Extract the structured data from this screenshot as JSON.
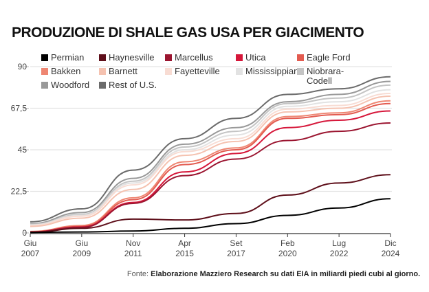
{
  "title": "PRODUZIONE DI SHALE GAS USA PER GIACIMENTO",
  "source": {
    "prefix": "Fonte:",
    "text": "Elaborazione Mazziero Research su dati EIA in miliardi piedi cubi al giorno."
  },
  "chart_data": {
    "type": "line",
    "title": "PRODUZIONE DI SHALE GAS USA PER GIACIMENTO",
    "xlabel": "",
    "ylabel": "",
    "stacked_cumulative": true,
    "ylim": [
      0,
      90
    ],
    "yticks": [
      "0",
      "22,5",
      "45",
      "67,5",
      "90"
    ],
    "ytick_values": [
      0,
      22.5,
      45,
      67.5,
      90
    ],
    "grid": true,
    "legend_position": "top-left",
    "categories": [
      {
        "month": "Giu",
        "year": "2007"
      },
      {
        "month": "Giu",
        "year": "2009"
      },
      {
        "month": "Nov",
        "year": "2011"
      },
      {
        "month": "Apr",
        "year": "2015"
      },
      {
        "month": "Set",
        "year": "2017"
      },
      {
        "month": "Feb",
        "year": "2020"
      },
      {
        "month": "Lug",
        "year": "2022"
      },
      {
        "month": "Dic",
        "year": "2024"
      }
    ],
    "x": [
      0,
      1,
      2,
      3,
      4,
      5,
      6,
      7
    ],
    "series": [
      {
        "name": "Permian",
        "color": "#000000",
        "values": [
          0.3,
          0.5,
          1.0,
          2.5,
          5.0,
          9.5,
          13.5,
          18.5
        ]
      },
      {
        "name": "Haynesville",
        "color": "#5e0f1a",
        "values": [
          0.3,
          2.5,
          7.5,
          7.0,
          10.5,
          20.5,
          27.0,
          31.5
        ]
      },
      {
        "name": "Marcellus",
        "color": "#9b1530",
        "values": [
          0.5,
          3.0,
          16.0,
          31.0,
          40.0,
          50.0,
          55.0,
          59.5
        ]
      },
      {
        "name": "Utica",
        "color": "#d6173a",
        "values": [
          0.5,
          3.2,
          16.5,
          33.0,
          43.0,
          57.0,
          61.0,
          66.0
        ]
      },
      {
        "name": "Eagle Ford",
        "color": "#e35b50",
        "values": [
          0.6,
          3.5,
          18.0,
          37.0,
          45.0,
          62.0,
          64.0,
          70.0
        ]
      },
      {
        "name": "Bakken",
        "color": "#ee8672",
        "values": [
          0.8,
          4.0,
          19.0,
          38.5,
          46.0,
          63.0,
          65.0,
          71.5
        ]
      },
      {
        "name": "Barnett",
        "color": "#f5c2b0",
        "values": [
          3.5,
          8.0,
          23.5,
          42.0,
          49.5,
          65.5,
          67.5,
          74.0
        ]
      },
      {
        "name": "Fayetteville",
        "color": "#f8dcd3",
        "values": [
          4.0,
          9.0,
          26.0,
          44.0,
          51.0,
          67.0,
          69.0,
          75.5
        ]
      },
      {
        "name": "Mississippian",
        "color": "#e2e2e2",
        "values": [
          4.3,
          9.5,
          27.0,
          45.0,
          53.0,
          68.5,
          71.0,
          77.5
        ]
      },
      {
        "name": "Niobrara-Codell",
        "color": "#c4c4c4",
        "values": [
          4.6,
          10.0,
          28.0,
          46.5,
          55.0,
          70.0,
          73.0,
          80.0
        ]
      },
      {
        "name": "Woodford",
        "color": "#999999",
        "values": [
          5.0,
          11.0,
          29.5,
          48.0,
          57.0,
          71.0,
          75.0,
          82.0
        ]
      },
      {
        "name": "Rest of U.S.",
        "color": "#6b6b6b",
        "values": [
          6.0,
          13.0,
          34.0,
          51.0,
          62.0,
          75.0,
          78.0,
          84.5
        ]
      }
    ]
  }
}
